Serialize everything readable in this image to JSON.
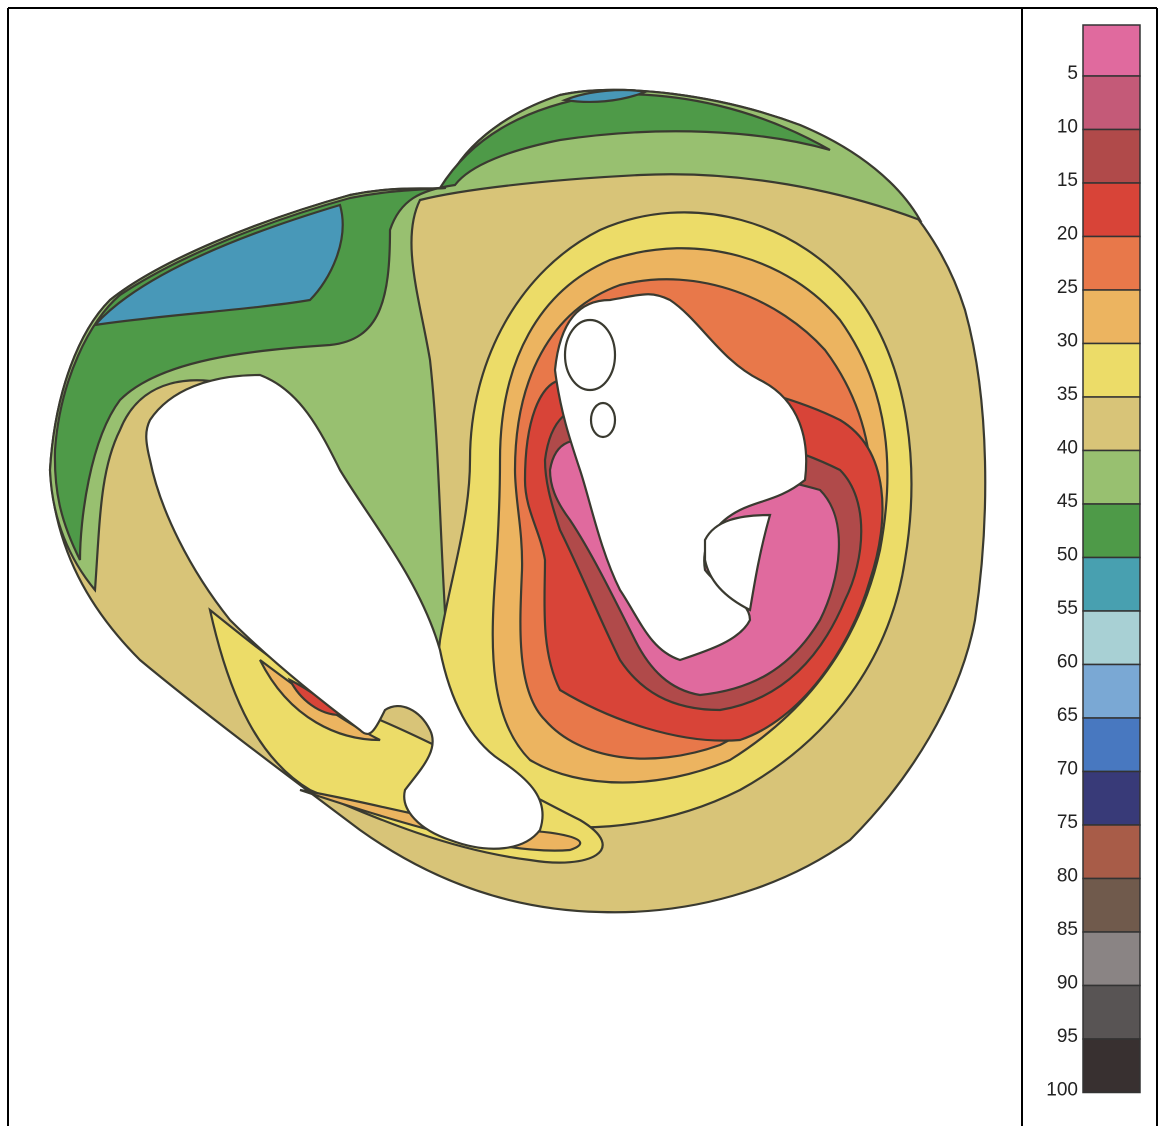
{
  "legend": {
    "ticks": [
      5,
      10,
      15,
      20,
      25,
      30,
      35,
      40,
      45,
      50,
      55,
      60,
      65,
      70,
      75,
      80,
      85,
      90,
      95,
      100
    ],
    "colors": [
      "#e06a9e",
      "#c45a78",
      "#b04a4a",
      "#d84438",
      "#e8784a",
      "#ecb460",
      "#ecdc68",
      "#d8c478",
      "#98c070",
      "#4e9a48",
      "#48a0b0",
      "#a8d0d4",
      "#7aa8d4",
      "#4878c0",
      "#383a78",
      "#a85c48",
      "#705a4c",
      "#8a8484",
      "#585454",
      "#383030"
    ]
  }
}
